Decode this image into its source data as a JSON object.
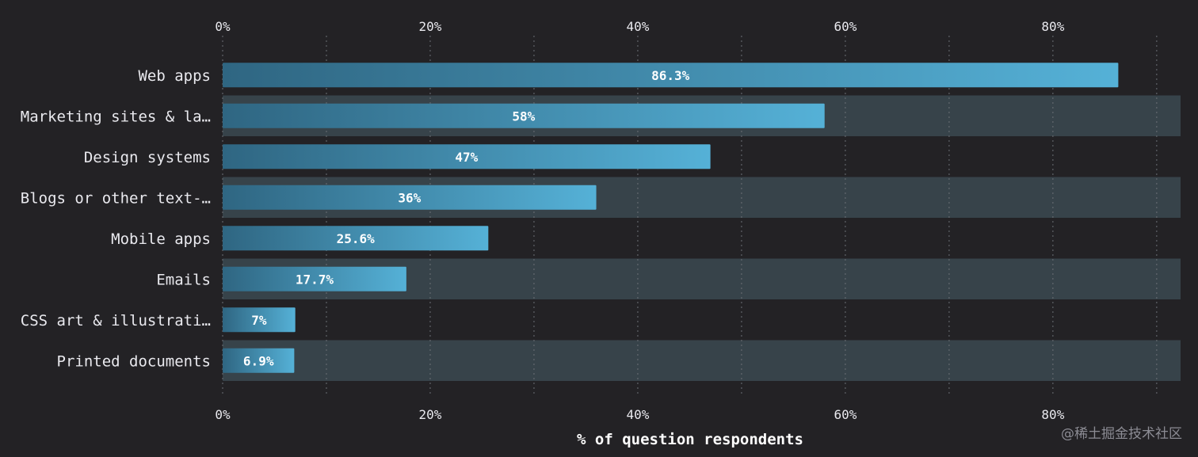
{
  "chart_data": {
    "type": "bar",
    "orientation": "horizontal",
    "categories": [
      "Web apps",
      "Marketing sites & la…",
      "Design systems",
      "Blogs or other text-…",
      "Mobile apps",
      "Emails",
      "CSS art & illustrati…",
      "Printed documents"
    ],
    "values": [
      86.3,
      58,
      47,
      36,
      25.6,
      17.7,
      7,
      6.9
    ],
    "value_labels": [
      "86.3%",
      "58%",
      "47%",
      "36%",
      "25.6%",
      "17.7%",
      "7%",
      "6.9%"
    ],
    "xlabel": "% of question respondents",
    "x_ticks": [
      0,
      20,
      40,
      60,
      80
    ],
    "x_tick_labels": [
      "0%",
      "20%",
      "40%",
      "60%",
      "80%"
    ],
    "x_minor_ticks": [
      10,
      30,
      50,
      70,
      90
    ],
    "xlim": [
      0,
      92.3
    ],
    "grid": true,
    "x_axis_position": "top-and-bottom",
    "colors": {
      "background": "#232225",
      "row_band": "#37434a",
      "bar_start": "#2f6682",
      "bar_end": "#55b1d7",
      "grid": "#6c7076",
      "text": "#e9e9ee"
    }
  },
  "watermark": "@稀土掘金技术社区"
}
